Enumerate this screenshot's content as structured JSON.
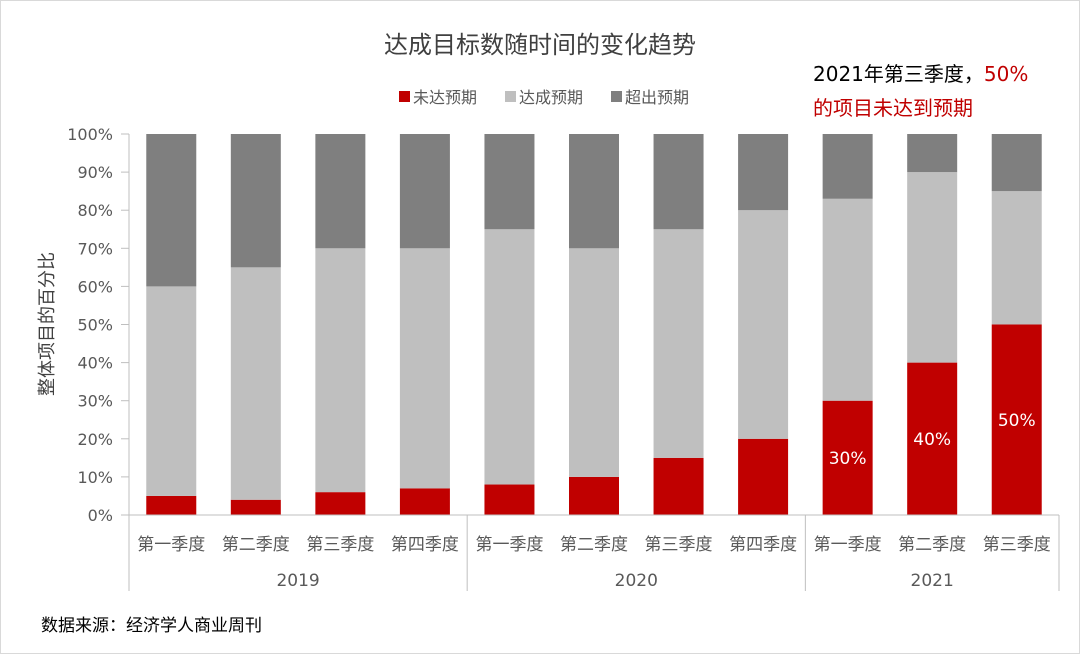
{
  "chart_data": {
    "type": "bar",
    "stacked": true,
    "title": "达成目标数随时间的变化趋势",
    "ylabel": "整体项目的百分比",
    "ylim": [
      0,
      100
    ],
    "yticks": [
      "0%",
      "10%",
      "20%",
      "30%",
      "40%",
      "50%",
      "60%",
      "70%",
      "80%",
      "90%",
      "100%"
    ],
    "categories": [
      "第一季度",
      "第二季度",
      "第三季度",
      "第四季度",
      "第一季度",
      "第二季度",
      "第三季度",
      "第四季度",
      "第一季度",
      "第二季度",
      "第三季度"
    ],
    "groups": [
      {
        "label": "2019",
        "count": 4
      },
      {
        "label": "2020",
        "count": 4
      },
      {
        "label": "2021",
        "count": 3
      }
    ],
    "series": [
      {
        "name": "未达预期",
        "color": "#c00000",
        "values": [
          5,
          4,
          6,
          7,
          8,
          10,
          15,
          20,
          30,
          40,
          50
        ]
      },
      {
        "name": "达成预期",
        "color": "#bfbfbf",
        "values": [
          55,
          61,
          64,
          63,
          67,
          60,
          60,
          60,
          53,
          50,
          35
        ]
      },
      {
        "name": "超出预期",
        "color": "#7f7f7f",
        "values": [
          40,
          35,
          30,
          30,
          25,
          30,
          25,
          20,
          17,
          10,
          15
        ]
      }
    ],
    "data_labels": [
      "",
      "",
      "",
      "",
      "",
      "",
      "",
      "",
      "30%",
      "40%",
      "50%"
    ],
    "grid": false,
    "legend_position": "top"
  },
  "annotation": {
    "line1_prefix": "2021年第三季度，",
    "line1_highlight": "50%",
    "line2": "的项目未达到预期",
    "highlight_color": "#c00000"
  },
  "source": "数据来源：经济学人商业周刊"
}
